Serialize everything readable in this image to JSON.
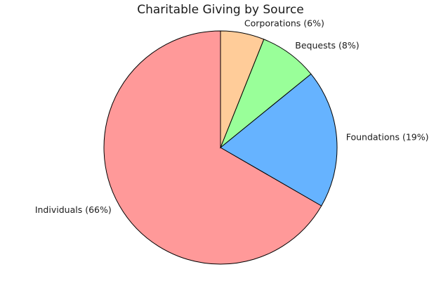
{
  "chart_data": {
    "type": "pie",
    "title": "Charitable Giving by Source",
    "slices": [
      {
        "label": "Individuals (66%)",
        "value": 66,
        "color": "#ff9999"
      },
      {
        "label": "Foundations (19%)",
        "value": 19,
        "color": "#66b3ff"
      },
      {
        "label": "Bequests (8%)",
        "value": 8,
        "color": "#99ff99"
      },
      {
        "label": "Corporations (6%)",
        "value": 6,
        "color": "#ffcc99"
      }
    ],
    "start_angle_deg": 90,
    "direction": "counterclockwise"
  }
}
